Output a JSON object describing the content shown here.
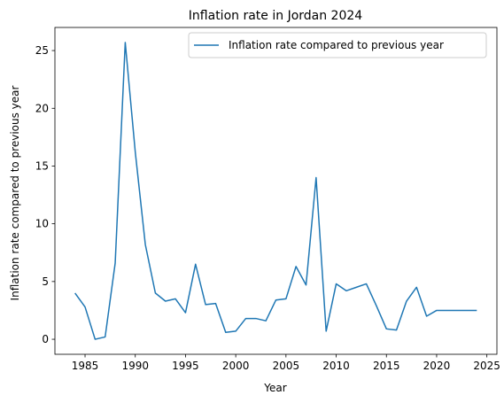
{
  "chart_data": {
    "type": "line",
    "title": "Inflation rate in Jordan 2024",
    "xlabel": "Year",
    "ylabel": "Inflation rate compared to previous year",
    "xlim": [
      1982,
      2026
    ],
    "ylim": [
      -1.3,
      27.0
    ],
    "x_ticks": [
      1985,
      1990,
      1995,
      2000,
      2005,
      2010,
      2015,
      2020,
      2025
    ],
    "y_ticks": [
      0,
      5,
      10,
      15,
      20,
      25
    ],
    "grid": false,
    "legend_position": "top-right",
    "series": [
      {
        "name": "Inflation rate compared to previous year",
        "color": "#1f77b4",
        "x": [
          1984,
          1985,
          1986,
          1987,
          1988,
          1989,
          1990,
          1991,
          1992,
          1993,
          1994,
          1995,
          1996,
          1997,
          1998,
          1999,
          2000,
          2001,
          2002,
          2003,
          2004,
          2005,
          2006,
          2007,
          2008,
          2009,
          2010,
          2011,
          2012,
          2013,
          2014,
          2015,
          2016,
          2017,
          2018,
          2019,
          2020,
          2021,
          2022,
          2023,
          2024
        ],
        "y": [
          4.0,
          2.8,
          0.0,
          0.2,
          6.6,
          25.7,
          16.2,
          8.2,
          4.0,
          3.3,
          3.5,
          2.3,
          6.5,
          3.0,
          3.1,
          0.6,
          0.7,
          1.8,
          1.8,
          1.6,
          3.4,
          3.5,
          6.3,
          4.7,
          14.0,
          0.7,
          4.8,
          4.2,
          4.5,
          4.8,
          2.9,
          0.9,
          0.8,
          3.3,
          4.5,
          2.0,
          2.5,
          2.5,
          2.5,
          2.5,
          2.5
        ]
      }
    ]
  }
}
